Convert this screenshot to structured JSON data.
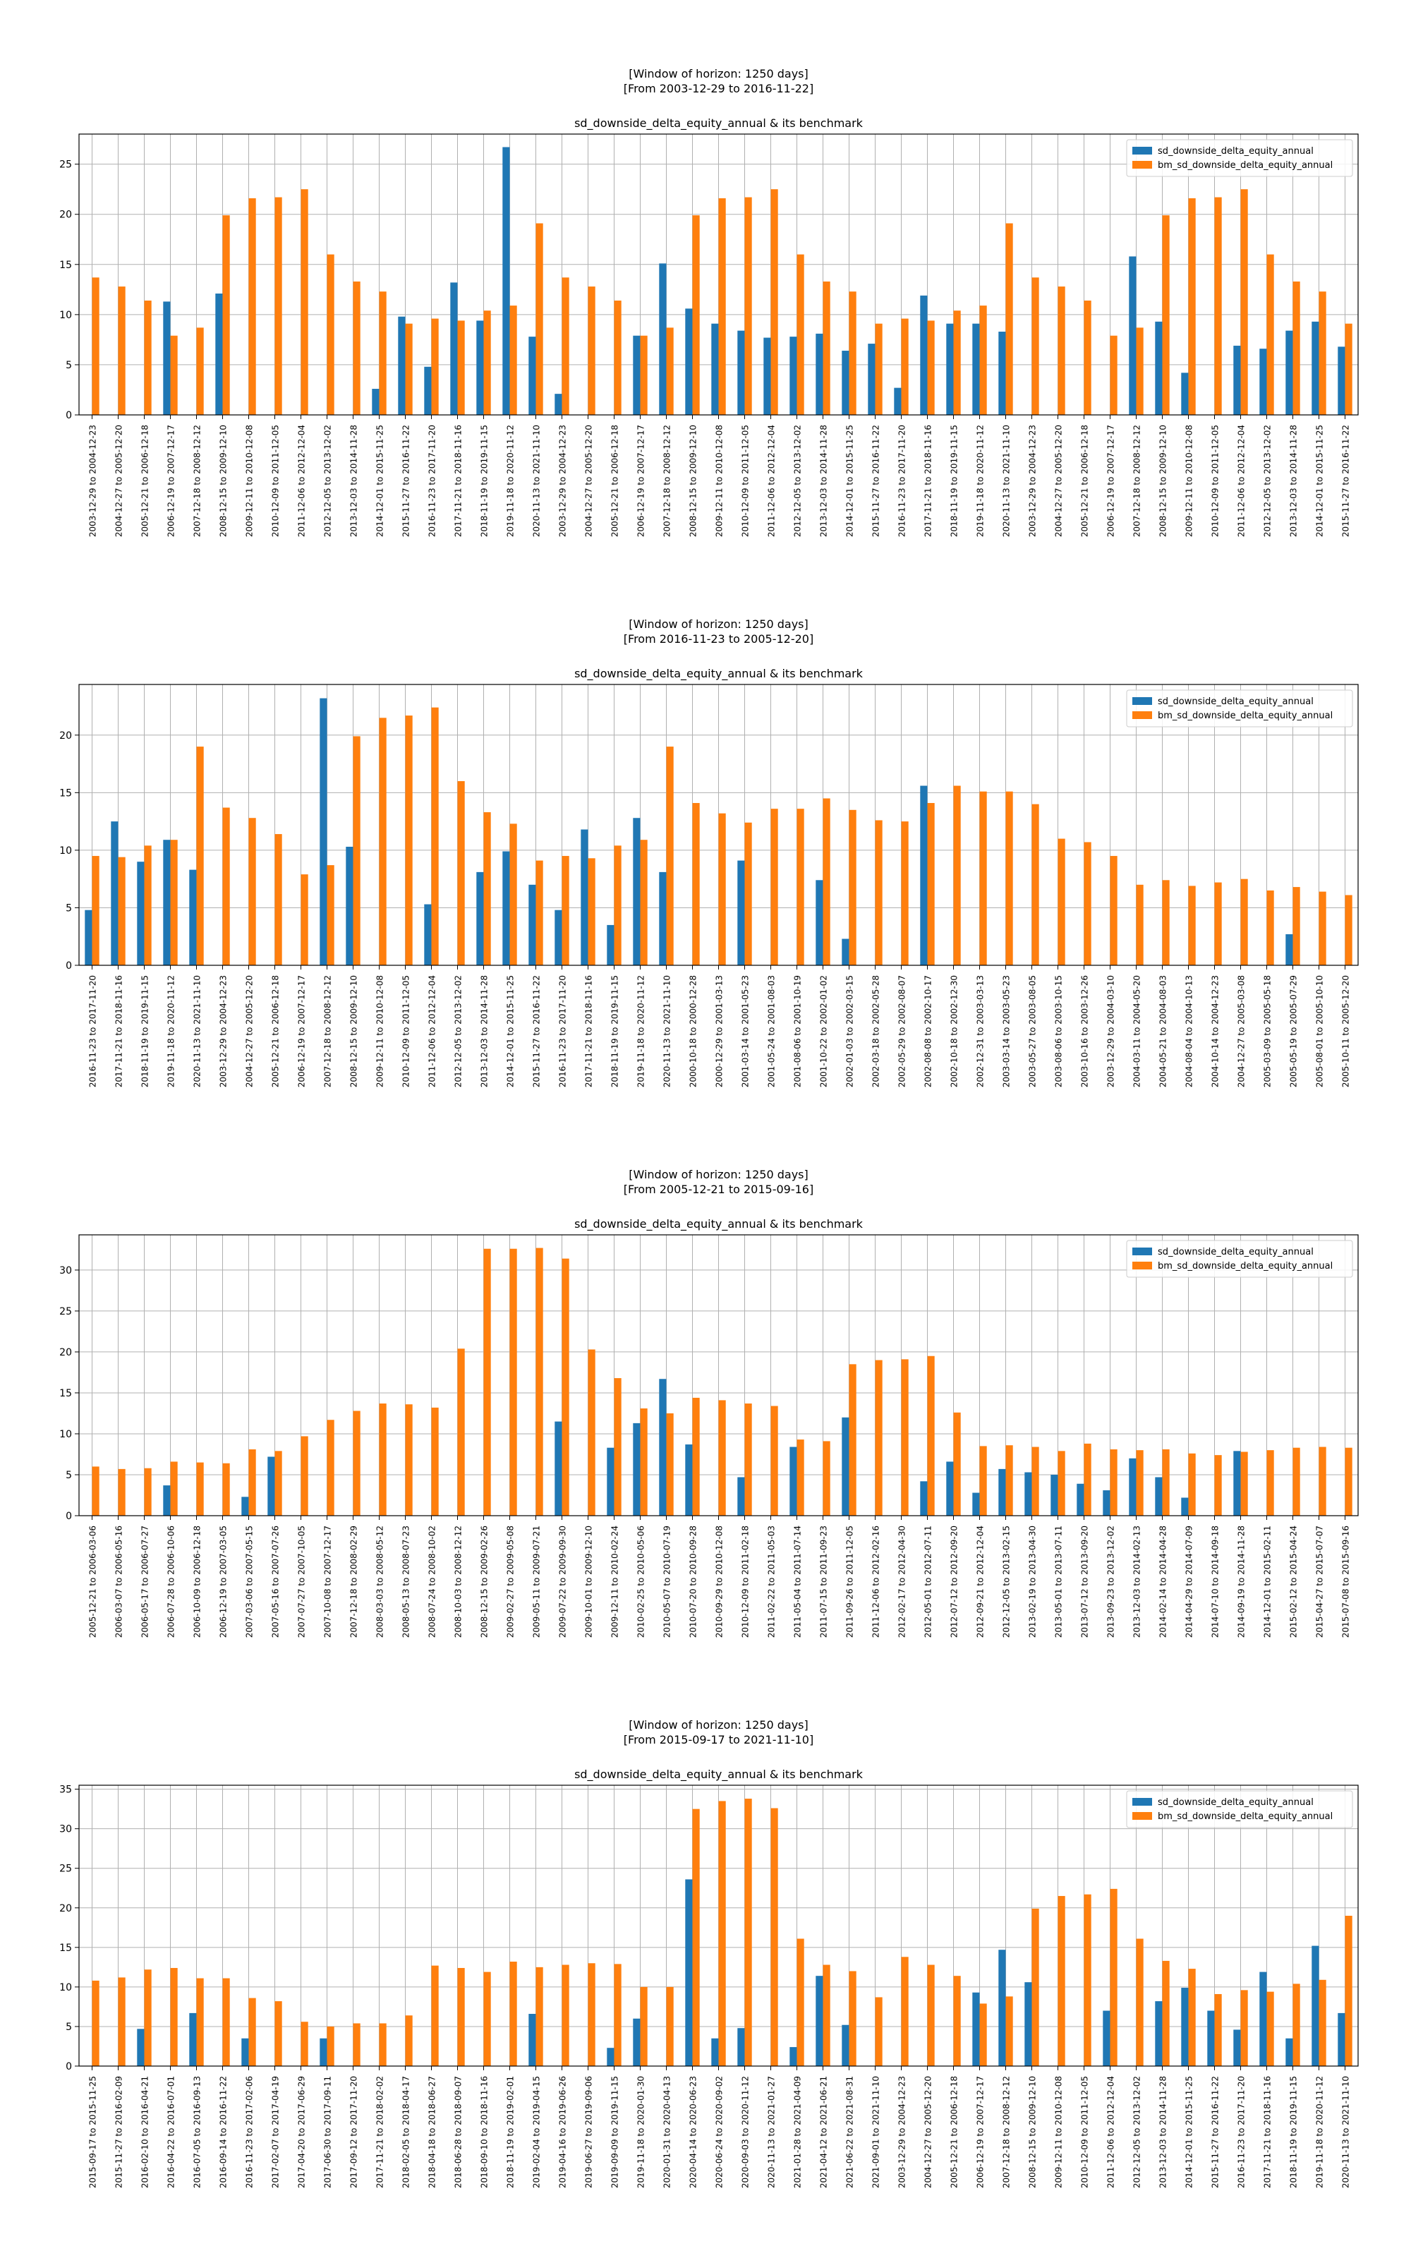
{
  "legend_labels": [
    "sd_downside_delta_equity_annual",
    "bm_sd_downside_delta_equity_annual"
  ],
  "colors": {
    "series": "#1f77b4",
    "benchmark": "#ff7f0e",
    "grid": "#b0b0b0",
    "axis": "#000000"
  },
  "chart_data": [
    {
      "type": "bar",
      "title_lines": [
        "[Window of horizon: 1250 days]",
        "[From 2003-12-29 to 2016-11-22]"
      ],
      "title": "sd_downside_delta_equity_annual & its benchmark",
      "legend_position": "upper right",
      "grid": true,
      "ylim": [
        0,
        28
      ],
      "yticks": [
        0,
        5,
        10,
        15,
        20,
        25
      ],
      "categories": [
        "2003-12-29 to 2004-12-23",
        "2004-12-27 to 2005-12-20",
        "2005-12-21 to 2006-12-18",
        "2006-12-19 to 2007-12-17",
        "2007-12-18 to 2008-12-12",
        "2008-12-15 to 2009-12-10",
        "2009-12-11 to 2010-12-08",
        "2010-12-09 to 2011-12-05",
        "2011-12-06 to 2012-12-04",
        "2012-12-05 to 2013-12-02",
        "2013-12-03 to 2014-11-28",
        "2014-12-01 to 2015-11-25",
        "2015-11-27 to 2016-11-22",
        "2016-11-23 to 2017-11-20",
        "2017-11-21 to 2018-11-16",
        "2018-11-19 to 2019-11-15",
        "2019-11-18 to 2020-11-12",
        "2020-11-13 to 2021-11-10",
        "2003-12-29 to 2004-12-23",
        "2004-12-27 to 2005-12-20",
        "2005-12-21 to 2006-12-18",
        "2006-12-19 to 2007-12-17",
        "2007-12-18 to 2008-12-12",
        "2008-12-15 to 2009-12-10",
        "2009-12-11 to 2010-12-08",
        "2010-12-09 to 2011-12-05",
        "2011-12-06 to 2012-12-04",
        "2012-12-05 to 2013-12-02",
        "2013-12-03 to 2014-11-28",
        "2014-12-01 to 2015-11-25",
        "2015-11-27 to 2016-11-22",
        "2016-11-23 to 2017-11-20",
        "2017-11-21 to 2018-11-16",
        "2018-11-19 to 2019-11-15",
        "2019-11-18 to 2020-11-12",
        "2020-11-13 to 2021-11-10",
        "2003-12-29 to 2004-12-23",
        "2004-12-27 to 2005-12-20",
        "2005-12-21 to 2006-12-18",
        "2006-12-19 to 2007-12-17",
        "2007-12-18 to 2008-12-12",
        "2008-12-15 to 2009-12-10",
        "2009-12-11 to 2010-12-08",
        "2010-12-09 to 2011-12-05",
        "2011-12-06 to 2012-12-04",
        "2012-12-05 to 2013-12-02",
        "2013-12-03 to 2014-11-28",
        "2014-12-01 to 2015-11-25",
        "2015-11-27 to 2016-11-22"
      ],
      "series": [
        {
          "name": "sd_downside_delta_equity_annual",
          "values": [
            0,
            0,
            0,
            11.3,
            0,
            12.1,
            0,
            0,
            0,
            0,
            0,
            2.6,
            9.8,
            4.8,
            13.2,
            9.4,
            26.7,
            7.8,
            2.1,
            0,
            0,
            7.9,
            15.1,
            10.6,
            9.1,
            8.4,
            7.7,
            7.8,
            8.1,
            6.4,
            7.1,
            2.7,
            11.9,
            9.1,
            9.1,
            8.3,
            0,
            0,
            0,
            0,
            15.8,
            9.3,
            4.2,
            0,
            6.9,
            6.6,
            8.4,
            9.3,
            6.8
          ]
        },
        {
          "name": "bm_sd_downside_delta_equity_annual",
          "values": [
            13.7,
            12.8,
            11.4,
            7.9,
            8.7,
            19.9,
            21.6,
            21.7,
            22.5,
            16.0,
            13.3,
            12.3,
            9.1,
            9.6,
            9.4,
            10.4,
            10.9,
            19.1,
            13.7,
            12.8,
            11.4,
            7.9,
            8.7,
            19.9,
            21.6,
            21.7,
            22.5,
            16.0,
            13.3,
            12.3,
            9.1,
            9.6,
            9.4,
            10.4,
            10.9,
            19.1,
            13.7,
            12.8,
            11.4,
            7.9,
            8.7,
            19.9,
            21.6,
            21.7,
            22.5,
            16.0,
            13.3,
            12.3,
            9.1
          ]
        }
      ]
    },
    {
      "type": "bar",
      "title_lines": [
        "[Window of horizon: 1250 days]",
        "[From 2016-11-23 to 2005-12-20]"
      ],
      "title": "sd_downside_delta_equity_annual & its benchmark",
      "legend_position": "upper right",
      "grid": true,
      "ylim": [
        0,
        24.4
      ],
      "yticks": [
        0,
        5,
        10,
        15,
        20
      ],
      "categories": [
        "2016-11-23 to 2017-11-20",
        "2017-11-21 to 2018-11-16",
        "2018-11-19 to 2019-11-15",
        "2019-11-18 to 2020-11-12",
        "2020-11-13 to 2021-11-10",
        "2003-12-29 to 2004-12-23",
        "2004-12-27 to 2005-12-20",
        "2005-12-21 to 2006-12-18",
        "2006-12-19 to 2007-12-17",
        "2007-12-18 to 2008-12-12",
        "2008-12-15 to 2009-12-10",
        "2009-12-11 to 2010-12-08",
        "2010-12-09 to 2011-12-05",
        "2011-12-06 to 2012-12-04",
        "2012-12-05 to 2013-12-02",
        "2013-12-03 to 2014-11-28",
        "2014-12-01 to 2015-11-25",
        "2015-11-27 to 2016-11-22",
        "2016-11-23 to 2017-11-20",
        "2017-11-21 to 2018-11-16",
        "2018-11-19 to 2019-11-15",
        "2019-11-18 to 2020-11-12",
        "2020-11-13 to 2021-11-10",
        "2000-10-18 to 2000-12-28",
        "2000-12-29 to 2001-03-13",
        "2001-03-14 to 2001-05-23",
        "2001-05-24 to 2001-08-03",
        "2001-08-06 to 2001-10-19",
        "2001-10-22 to 2002-01-02",
        "2002-01-03 to 2002-03-15",
        "2002-03-18 to 2002-05-28",
        "2002-05-29 to 2002-08-07",
        "2002-08-08 to 2002-10-17",
        "2002-10-18 to 2002-12-30",
        "2002-12-31 to 2003-03-13",
        "2003-03-14 to 2003-05-23",
        "2003-05-27 to 2003-08-05",
        "2003-08-06 to 2003-10-15",
        "2003-10-16 to 2003-12-26",
        "2003-12-29 to 2004-03-10",
        "2004-03-11 to 2004-05-20",
        "2004-05-21 to 2004-08-03",
        "2004-08-04 to 2004-10-13",
        "2004-10-14 to 2004-12-23",
        "2004-12-27 to 2005-03-08",
        "2005-03-09 to 2005-05-18",
        "2005-05-19 to 2005-07-29",
        "2005-08-01 to 2005-10-10",
        "2005-10-11 to 2005-12-20"
      ],
      "series": [
        {
          "name": "sd_downside_delta_equity_annual",
          "values": [
            4.8,
            12.5,
            9.0,
            10.9,
            8.3,
            0,
            0,
            0,
            0,
            23.2,
            10.3,
            0,
            0,
            5.3,
            0,
            8.1,
            9.9,
            7.0,
            4.8,
            11.8,
            3.5,
            12.8,
            8.1,
            0,
            0,
            9.1,
            0,
            0,
            7.4,
            2.3,
            0,
            0,
            15.6,
            0,
            0,
            0,
            0,
            0,
            0,
            0,
            0,
            0,
            0,
            0,
            0,
            0,
            2.7,
            0,
            0
          ]
        },
        {
          "name": "bm_sd_downside_delta_equity_annual",
          "values": [
            9.5,
            9.4,
            10.4,
            10.9,
            19.0,
            13.7,
            12.8,
            11.4,
            7.9,
            8.7,
            19.9,
            21.5,
            21.7,
            22.4,
            16.0,
            13.3,
            12.3,
            9.1,
            9.5,
            9.3,
            10.4,
            10.9,
            19.0,
            14.1,
            13.2,
            12.4,
            13.6,
            13.6,
            14.5,
            13.5,
            12.6,
            12.5,
            14.1,
            15.6,
            15.1,
            15.1,
            14.0,
            11.0,
            10.7,
            9.5,
            7.0,
            7.4,
            6.9,
            7.2,
            7.5,
            6.5,
            6.8,
            6.4,
            6.1
          ]
        }
      ]
    },
    {
      "type": "bar",
      "title_lines": [
        "[Window of horizon: 1250 days]",
        "[From 2005-12-21 to 2015-09-16]"
      ],
      "title": "sd_downside_delta_equity_annual & its benchmark",
      "legend_position": "upper right",
      "grid": true,
      "ylim": [
        0,
        34.3
      ],
      "yticks": [
        0,
        5,
        10,
        15,
        20,
        25,
        30
      ],
      "categories": [
        "2005-12-21 to 2006-03-06",
        "2006-03-07 to 2006-05-16",
        "2006-05-17 to 2006-07-27",
        "2006-07-28 to 2006-10-06",
        "2006-10-09 to 2006-12-18",
        "2006-12-19 to 2007-03-05",
        "2007-03-06 to 2007-05-15",
        "2007-05-16 to 2007-07-26",
        "2007-07-27 to 2007-10-05",
        "2007-10-08 to 2007-12-17",
        "2007-12-18 to 2008-02-29",
        "2008-03-03 to 2008-05-12",
        "2008-05-13 to 2008-07-23",
        "2008-07-24 to 2008-10-02",
        "2008-10-03 to 2008-12-12",
        "2008-12-15 to 2009-02-26",
        "2009-02-27 to 2009-05-08",
        "2009-05-11 to 2009-07-21",
        "2009-07-22 to 2009-09-30",
        "2009-10-01 to 2009-12-10",
        "2009-12-11 to 2010-02-24",
        "2010-02-25 to 2010-05-06",
        "2010-05-07 to 2010-07-19",
        "2010-07-20 to 2010-09-28",
        "2010-09-29 to 2010-12-08",
        "2010-12-09 to 2011-02-18",
        "2011-02-22 to 2011-05-03",
        "2011-05-04 to 2011-07-14",
        "2011-07-15 to 2011-09-23",
        "2011-09-26 to 2011-12-05",
        "2011-12-06 to 2012-02-16",
        "2012-02-17 to 2012-04-30",
        "2012-05-01 to 2012-07-11",
        "2012-07-12 to 2012-09-20",
        "2012-09-21 to 2012-12-04",
        "2012-12-05 to 2013-02-15",
        "2013-02-19 to 2013-04-30",
        "2013-05-01 to 2013-07-11",
        "2013-07-12 to 2013-09-20",
        "2013-09-23 to 2013-12-02",
        "2013-12-03 to 2014-02-13",
        "2014-02-14 to 2014-04-28",
        "2014-04-29 to 2014-07-09",
        "2014-07-10 to 2014-09-18",
        "2014-09-19 to 2014-11-28",
        "2014-12-01 to 2015-02-11",
        "2015-02-12 to 2015-04-24",
        "2015-04-27 to 2015-07-07",
        "2015-07-08 to 2015-09-16"
      ],
      "series": [
        {
          "name": "sd_downside_delta_equity_annual",
          "values": [
            0,
            0,
            0,
            3.7,
            0,
            0,
            2.3,
            7.2,
            0,
            0,
            0,
            0,
            0,
            0,
            0,
            0,
            0,
            0,
            11.5,
            0,
            8.3,
            11.3,
            16.7,
            8.7,
            0,
            4.7,
            0,
            8.4,
            0,
            12.0,
            0,
            0,
            4.2,
            6.6,
            2.8,
            5.7,
            5.3,
            5.0,
            3.9,
            3.1,
            7.0,
            4.7,
            2.2,
            0,
            7.9,
            0,
            0,
            0,
            0
          ]
        },
        {
          "name": "bm_sd_downside_delta_equity_annual",
          "values": [
            6.0,
            5.7,
            5.8,
            6.6,
            6.5,
            6.4,
            8.1,
            7.9,
            9.7,
            11.7,
            12.8,
            13.7,
            13.6,
            13.2,
            20.4,
            32.6,
            32.6,
            32.7,
            31.4,
            20.3,
            16.8,
            13.1,
            12.5,
            14.4,
            14.1,
            13.7,
            13.4,
            9.3,
            9.1,
            18.5,
            19.0,
            19.1,
            19.5,
            12.6,
            8.5,
            8.6,
            8.4,
            7.9,
            8.8,
            8.1,
            8.0,
            8.1,
            7.6,
            7.4,
            7.8,
            8.0,
            8.3,
            8.4,
            8.3
          ]
        }
      ]
    },
    {
      "type": "bar",
      "title_lines": [
        "[Window of horizon: 1250 days]",
        "[From 2015-09-17 to 2021-11-10]"
      ],
      "title": "sd_downside_delta_equity_annual & its benchmark",
      "legend_position": "upper right",
      "grid": true,
      "ylim": [
        0,
        35.5
      ],
      "yticks": [
        0,
        5,
        10,
        15,
        20,
        25,
        30,
        35
      ],
      "categories": [
        "2015-09-17 to 2015-11-25",
        "2015-11-27 to 2016-02-09",
        "2016-02-10 to 2016-04-21",
        "2016-04-22 to 2016-07-01",
        "2016-07-05 to 2016-09-13",
        "2016-09-14 to 2016-11-22",
        "2016-11-23 to 2017-02-06",
        "2017-02-07 to 2017-04-19",
        "2017-04-20 to 2017-06-29",
        "2017-06-30 to 2017-09-11",
        "2017-09-12 to 2017-11-20",
        "2017-11-21 to 2018-02-02",
        "2018-02-05 to 2018-04-17",
        "2018-04-18 to 2018-06-27",
        "2018-06-28 to 2018-09-07",
        "2018-09-10 to 2018-11-16",
        "2018-11-19 to 2019-02-01",
        "2019-02-04 to 2019-04-15",
        "2019-04-16 to 2019-06-26",
        "2019-06-27 to 2019-09-06",
        "2019-09-09 to 2019-11-15",
        "2019-11-18 to 2020-01-30",
        "2020-01-31 to 2020-04-13",
        "2020-04-14 to 2020-06-23",
        "2020-06-24 to 2020-09-02",
        "2020-09-03 to 2020-11-12",
        "2020-11-13 to 2021-01-27",
        "2021-01-28 to 2021-04-09",
        "2021-04-12 to 2021-06-21",
        "2021-06-22 to 2021-08-31",
        "2021-09-01 to 2021-11-10",
        "2003-12-29 to 2004-12-23",
        "2004-12-27 to 2005-12-20",
        "2005-12-21 to 2006-12-18",
        "2006-12-19 to 2007-12-17",
        "2007-12-18 to 2008-12-12",
        "2008-12-15 to 2009-12-10",
        "2009-12-11 to 2010-12-08",
        "2010-12-09 to 2011-12-05",
        "2011-12-06 to 2012-12-04",
        "2012-12-05 to 2013-12-02",
        "2013-12-03 to 2014-11-28",
        "2014-12-01 to 2015-11-25",
        "2015-11-27 to 2016-11-22",
        "2016-11-23 to 2017-11-20",
        "2017-11-21 to 2018-11-16",
        "2018-11-19 to 2019-11-15",
        "2019-11-18 to 2020-11-12",
        "2020-11-13 to 2021-11-10"
      ],
      "series": [
        {
          "name": "sd_downside_delta_equity_annual",
          "values": [
            0,
            0,
            4.7,
            0,
            6.7,
            0,
            3.5,
            0,
            0,
            3.5,
            0,
            0,
            0,
            0,
            0,
            0,
            0,
            6.6,
            0,
            0,
            2.3,
            6.0,
            0,
            23.6,
            3.5,
            4.8,
            0,
            2.4,
            11.4,
            5.2,
            0,
            0,
            0,
            0,
            9.3,
            14.7,
            10.6,
            0,
            0,
            7.0,
            0,
            8.2,
            9.9,
            7.0,
            4.6,
            11.9,
            3.5,
            15.2,
            6.7
          ]
        },
        {
          "name": "bm_sd_downside_delta_equity_annual",
          "values": [
            10.8,
            11.2,
            12.2,
            12.4,
            11.1,
            11.1,
            8.6,
            8.2,
            5.6,
            5.0,
            5.4,
            5.4,
            6.4,
            12.7,
            12.4,
            11.9,
            13.2,
            12.5,
            12.8,
            13.0,
            12.9,
            10.0,
            10.0,
            32.5,
            33.5,
            33.8,
            32.6,
            16.1,
            12.8,
            12.0,
            8.7,
            13.8,
            12.8,
            11.4,
            7.9,
            8.8,
            19.9,
            21.5,
            21.7,
            22.4,
            16.1,
            13.3,
            12.3,
            9.1,
            9.6,
            9.4,
            10.4,
            10.9,
            19.0
          ]
        }
      ]
    }
  ]
}
